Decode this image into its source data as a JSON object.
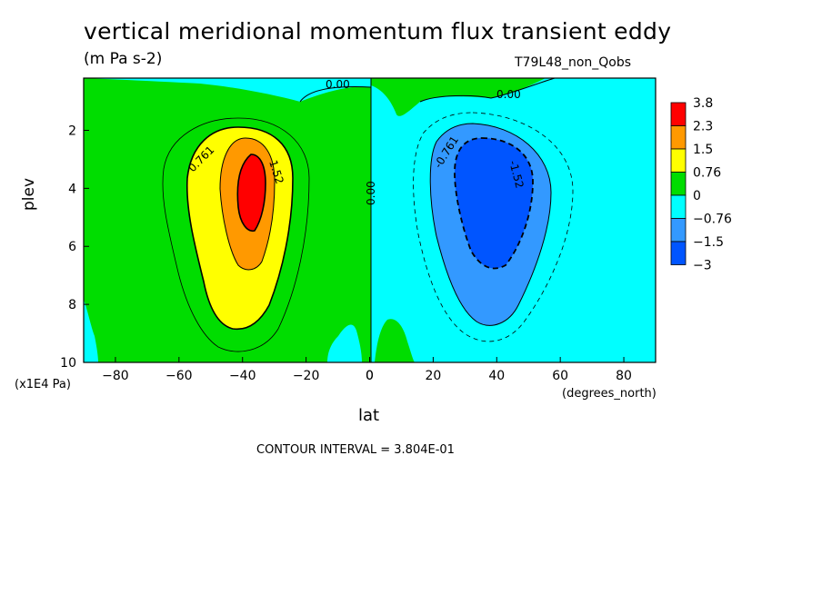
{
  "chart_data": {
    "type": "contour",
    "title": "vertical meridional momentum flux transient eddy",
    "units": "(m Pa s-2)",
    "dataset": "T79L48_non_Qobs",
    "xlabel": "lat",
    "x_unit": "(degrees_north)",
    "ylabel": "plev",
    "y_unit": "(x1E4 Pa)",
    "xlim": [
      -90,
      90
    ],
    "ylim": [
      10,
      0.2
    ],
    "x_ticks": [
      -80,
      -60,
      -40,
      -20,
      0,
      20,
      40,
      60,
      80
    ],
    "y_ticks": [
      2,
      4,
      6,
      8,
      10
    ],
    "contour_interval_text": "CONTOUR INTERVAL = 3.804E-01",
    "colorbar": {
      "labels": [
        "3.8",
        "2.3",
        "1.5",
        "0.76",
        "0",
        "-0.76",
        "-1.5",
        "-3"
      ],
      "colors": [
        "#ff0000",
        "#ff9900",
        "#ffff00",
        "#00dd00",
        "#00ffff",
        "#3399ff",
        "#0055ff"
      ]
    },
    "contour_labels": [
      "0.00",
      "0.00",
      "0.761",
      "1.52",
      "0.00",
      "-0.761",
      "-1.52"
    ],
    "features": [
      {
        "name": "positive-maximum",
        "lat": -38,
        "plev": 4,
        "value": 3.8
      },
      {
        "name": "negative-minimum",
        "lat": 38,
        "plev": 4.5,
        "value": -3
      }
    ]
  }
}
